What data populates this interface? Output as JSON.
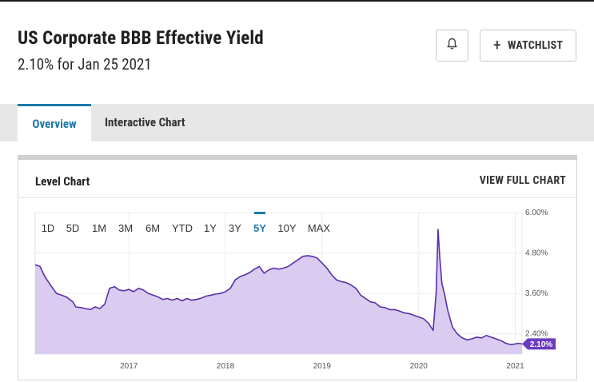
{
  "header": {
    "title": "US Corporate BBB Effective Yield",
    "subtitle": "2.10% for Jan 25 2021",
    "alert_icon": "bell-icon",
    "watchlist_label": "WATCHLIST",
    "watchlist_icon": "plus-icon"
  },
  "tabs": [
    {
      "label": "Overview",
      "active": true
    },
    {
      "label": "Interactive Chart",
      "active": false
    }
  ],
  "card": {
    "title": "Level Chart",
    "link": "VIEW FULL CHART"
  },
  "colors": {
    "accent": "#1e78a9",
    "series_line": "#5b2fa8",
    "series_fill": "#d9ccf0",
    "last_value_badge": "#6a3cc0"
  },
  "chart_data": {
    "type": "area",
    "range_buttons": [
      "1D",
      "5D",
      "1M",
      "3M",
      "6M",
      "YTD",
      "1Y",
      "3Y",
      "5Y",
      "10Y",
      "MAX"
    ],
    "selected_range": "5Y",
    "y_ticks": [
      "6.00%",
      "4.80%",
      "3.60%",
      "2.40%"
    ],
    "ylim": [
      1.8,
      6.0
    ],
    "x_ticks": [
      {
        "label": "2017",
        "t": 2017.0
      },
      {
        "label": "2018",
        "t": 2018.0
      },
      {
        "label": "2019",
        "t": 2019.0
      },
      {
        "label": "2020",
        "t": 2020.0
      },
      {
        "label": "2021",
        "t": 2021.0
      }
    ],
    "xlim": [
      2016.03,
      2021.07
    ],
    "last_value_label": "2.10%",
    "series": [
      {
        "x": [
          2016.03,
          2016.08,
          2016.13,
          2016.2,
          2016.25,
          2016.3,
          2016.35,
          2016.42,
          2016.45,
          2016.5,
          2016.55,
          2016.6,
          2016.65,
          2016.7,
          2016.75,
          2016.8,
          2016.85,
          2016.9,
          2016.95,
          2017.0,
          2017.05,
          2017.1,
          2017.15,
          2017.2,
          2017.25,
          2017.3,
          2017.35,
          2017.4,
          2017.45,
          2017.5,
          2017.55,
          2017.6,
          2017.65,
          2017.7,
          2017.75,
          2017.8,
          2017.85,
          2017.9,
          2017.95,
          2018.0,
          2018.05,
          2018.1,
          2018.15,
          2018.2,
          2018.25,
          2018.3,
          2018.35,
          2018.4,
          2018.45,
          2018.5,
          2018.55,
          2018.6,
          2018.65,
          2018.7,
          2018.75,
          2018.8,
          2018.85,
          2018.9,
          2018.95,
          2019.0,
          2019.05,
          2019.1,
          2019.15,
          2019.2,
          2019.25,
          2019.3,
          2019.35,
          2019.4,
          2019.45,
          2019.5,
          2019.55,
          2019.6,
          2019.65,
          2019.7,
          2019.75,
          2019.8,
          2019.85,
          2019.9,
          2019.95,
          2020.0,
          2020.05,
          2020.1,
          2020.15,
          2020.18,
          2020.2,
          2020.22,
          2020.24,
          2020.27,
          2020.3,
          2020.35,
          2020.4,
          2020.45,
          2020.5,
          2020.55,
          2020.6,
          2020.65,
          2020.7,
          2020.75,
          2020.8,
          2020.85,
          2020.9,
          2020.95,
          2021.0,
          2021.03,
          2021.07
        ],
        "y": [
          4.45,
          4.4,
          4.1,
          3.8,
          3.6,
          3.55,
          3.5,
          3.35,
          3.2,
          3.18,
          3.15,
          3.12,
          3.2,
          3.15,
          3.28,
          3.75,
          3.8,
          3.7,
          3.68,
          3.72,
          3.65,
          3.75,
          3.7,
          3.6,
          3.55,
          3.5,
          3.42,
          3.45,
          3.4,
          3.45,
          3.38,
          3.45,
          3.4,
          3.42,
          3.46,
          3.52,
          3.55,
          3.58,
          3.6,
          3.65,
          3.75,
          4.0,
          4.1,
          4.15,
          4.22,
          4.32,
          4.4,
          4.2,
          4.3,
          4.35,
          4.32,
          4.35,
          4.4,
          4.5,
          4.6,
          4.7,
          4.72,
          4.7,
          4.65,
          4.5,
          4.35,
          4.15,
          4.0,
          3.95,
          3.92,
          3.85,
          3.75,
          3.55,
          3.45,
          3.35,
          3.32,
          3.2,
          3.18,
          3.12,
          3.12,
          3.08,
          3.02,
          3.0,
          2.95,
          2.9,
          2.85,
          2.72,
          2.5,
          3.6,
          5.5,
          4.6,
          3.9,
          3.55,
          3.1,
          2.6,
          2.4,
          2.28,
          2.22,
          2.25,
          2.3,
          2.28,
          2.35,
          2.3,
          2.25,
          2.2,
          2.12,
          2.08,
          2.1,
          2.12,
          2.1
        ]
      }
    ]
  }
}
